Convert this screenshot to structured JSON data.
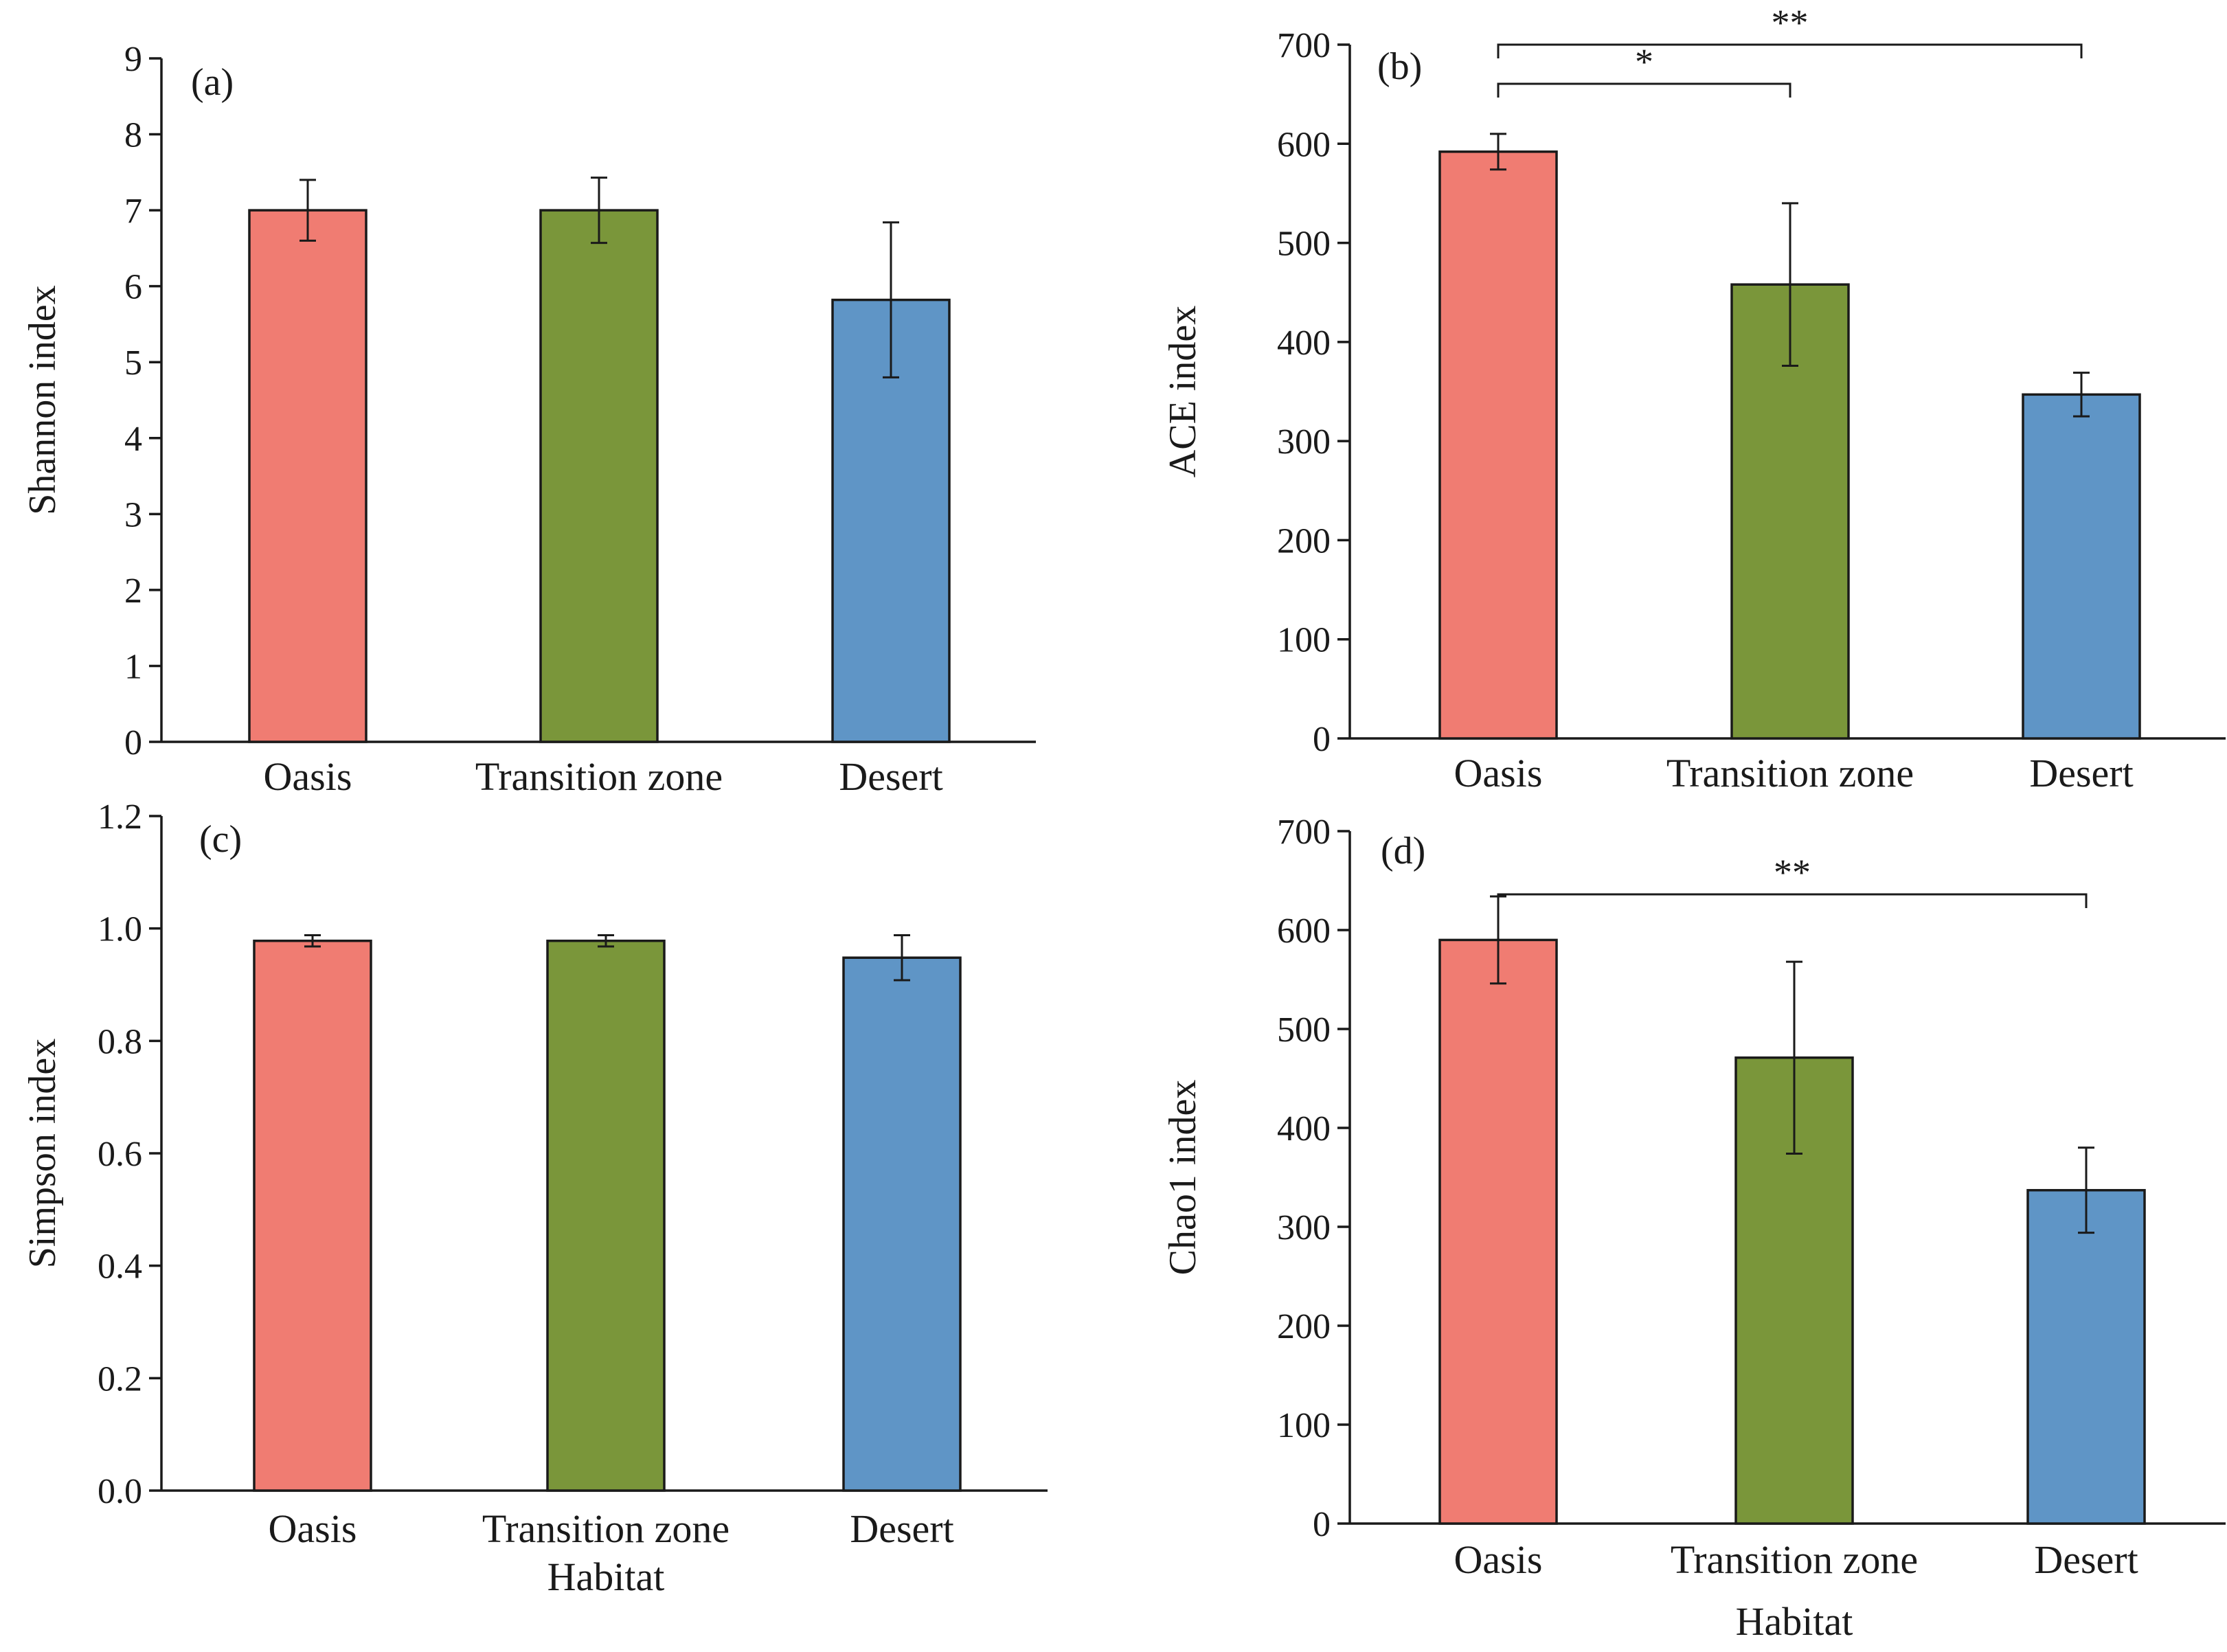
{
  "colors": {
    "Oasis": "#f07c72",
    "Transition zone": "#7a963a",
    "Desert": "#5f95c6"
  },
  "chart_data": [
    {
      "panel": "(a)",
      "type": "bar",
      "categories": [
        "Oasis",
        "Transition zone",
        "Desert"
      ],
      "values": [
        7.0,
        7.0,
        5.82
      ],
      "errors": [
        0.4,
        0.43,
        1.02
      ],
      "ylabel": "Shannon index",
      "xlabel": "",
      "ylim": [
        0,
        9
      ],
      "yticks": [
        0,
        1,
        2,
        3,
        4,
        5,
        6,
        7,
        8,
        9
      ],
      "ytick_labels": [
        "0",
        "1",
        "2",
        "3",
        "4",
        "5",
        "6",
        "7",
        "8",
        "9"
      ],
      "significance": []
    },
    {
      "panel": "(b)",
      "type": "bar",
      "categories": [
        "Oasis",
        "Transition zone",
        "Desert"
      ],
      "values": [
        592,
        458,
        347
      ],
      "errors": [
        18,
        82,
        22
      ],
      "ylabel": "ACE index",
      "xlabel": "",
      "ylim": [
        0,
        700
      ],
      "yticks": [
        0,
        100,
        200,
        300,
        400,
        500,
        600,
        700
      ],
      "ytick_labels": [
        "0",
        "100",
        "200",
        "300",
        "400",
        "500",
        "600",
        "700"
      ],
      "significance": [
        {
          "from": "Oasis",
          "to": "Transition zone",
          "label": "*"
        },
        {
          "from": "Oasis",
          "to": "Desert",
          "label": "**"
        }
      ]
    },
    {
      "panel": "(c)",
      "type": "bar",
      "categories": [
        "Oasis",
        "Transition zone",
        "Desert"
      ],
      "values": [
        0.978,
        0.978,
        0.948
      ],
      "errors": [
        0.01,
        0.01,
        0.04
      ],
      "ylabel": "Simpson index",
      "xlabel": "Habitat",
      "ylim": [
        0,
        1.2
      ],
      "yticks": [
        0,
        0.2,
        0.4,
        0.6,
        0.8,
        1.0,
        1.2
      ],
      "ytick_labels": [
        "0.0",
        "0.2",
        "0.4",
        "0.6",
        "0.8",
        "1.0",
        "1.2"
      ],
      "significance": []
    },
    {
      "panel": "(d)",
      "type": "bar",
      "categories": [
        "Oasis",
        "Transition zone",
        "Desert"
      ],
      "values": [
        590,
        471,
        337
      ],
      "errors": [
        44,
        97,
        43
      ],
      "ylabel": "Chao1 index",
      "xlabel": "Habitat",
      "ylim": [
        0,
        700
      ],
      "yticks": [
        0,
        100,
        200,
        300,
        400,
        500,
        600,
        700
      ],
      "ytick_labels": [
        "0",
        "100",
        "200",
        "300",
        "400",
        "500",
        "600",
        "700"
      ],
      "significance": [
        {
          "from": "Oasis",
          "to": "Desert",
          "label": "**"
        }
      ]
    }
  ]
}
